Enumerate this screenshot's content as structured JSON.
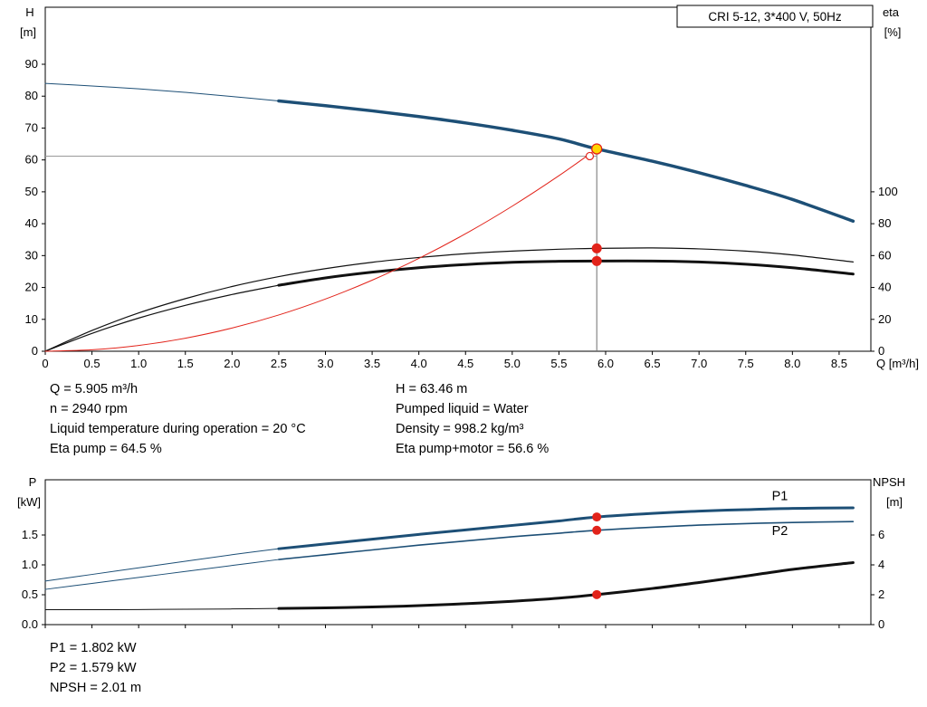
{
  "title_box": "CRI 5-12, 3*400 V, 50Hz",
  "colors": {
    "curve_blue": "#1d4f76",
    "curve_black": "#111111",
    "curve_red": "#e2231a",
    "duty_yellow": "#ffd400",
    "guide_gray": "#808080"
  },
  "info_top": {
    "left": [
      "Q = 5.905 m³/h",
      "n = 2940 rpm",
      "Liquid temperature during operation = 20 °C",
      "Eta pump = 64.5 %"
    ],
    "right": [
      "H = 63.46 m",
      "Pumped liquid = Water",
      "Density = 998.2 kg/m³",
      "Eta pump+motor = 56.6 %"
    ]
  },
  "info_bottom": [
    "P1 = 1.802 kW",
    "P2 = 1.579 kW",
    "NPSH = 2.01 m"
  ],
  "chart_data": [
    {
      "id": "qh",
      "type": "line",
      "title": "CRI 5-12, 3*400 V, 50Hz",
      "x": {
        "label": "Q [m³/h]",
        "min": 0,
        "max": 8.84,
        "ticks": [
          0,
          0.5,
          1,
          1.5,
          2,
          2.5,
          3,
          3.5,
          4,
          4.5,
          5,
          5.5,
          6,
          6.5,
          7,
          7.5,
          8,
          8.5
        ],
        "tick_labels": [
          "0",
          "0.5",
          "1.0",
          "1.5",
          "2.0",
          "2.5",
          "3.0",
          "3.5",
          "4.0",
          "4.5",
          "5.0",
          "5.5",
          "6.0",
          "6.5",
          "7.0",
          "7.5",
          "8.0",
          "8.5"
        ]
      },
      "y_left": {
        "label_lines": [
          "H",
          "[m]"
        ],
        "min": 0,
        "max": 107.9,
        "ticks": [
          0,
          10,
          20,
          30,
          40,
          50,
          60,
          70,
          80,
          90
        ]
      },
      "y_right": {
        "label_lines": [
          "eta",
          "[%]"
        ],
        "min": 0,
        "max": 215.8,
        "ticks": [
          0,
          20,
          40,
          60,
          80,
          100
        ]
      },
      "series": [
        {
          "name": "qh-extension",
          "color": "#1d4f76",
          "width": 1,
          "axis": "left",
          "points": [
            [
              0,
              84
            ],
            [
              0.5,
              83.2
            ],
            [
              1,
              82.3
            ],
            [
              1.5,
              81.2
            ],
            [
              2,
              79.9
            ],
            [
              2.5,
              78.5
            ]
          ]
        },
        {
          "name": "eta-pump-motor-extension",
          "color": "#111111",
          "width": 1.2,
          "axis": "right",
          "points": [
            [
              0,
              0
            ],
            [
              0.5,
              11.2
            ],
            [
              1,
              20.8
            ],
            [
              1.5,
              28.8
            ],
            [
              2,
              35.6
            ],
            [
              2.5,
              41.4
            ]
          ]
        },
        {
          "name": "eta-pump-motor-curve",
          "color": "#111111",
          "width": 3,
          "axis": "right",
          "points": [
            [
              2.5,
              41.4
            ],
            [
              3,
              46
            ],
            [
              3.5,
              49.6
            ],
            [
              4,
              52.4
            ],
            [
              4.5,
              54.4
            ],
            [
              5,
              55.8
            ],
            [
              5.5,
              56.4
            ],
            [
              5.905,
              56.6
            ],
            [
              6.5,
              56.6
            ],
            [
              7,
              56
            ],
            [
              7.5,
              54.6
            ],
            [
              8,
              52.4
            ],
            [
              8.65,
              48.4
            ]
          ]
        },
        {
          "name": "eta-pump-curve",
          "color": "#111111",
          "width": 1.2,
          "axis": "right",
          "points": [
            [
              0,
              0
            ],
            [
              0.5,
              13
            ],
            [
              1,
              24
            ],
            [
              1.5,
              33
            ],
            [
              2,
              40.6
            ],
            [
              2.5,
              46.8
            ],
            [
              3,
              51.8
            ],
            [
              3.5,
              55.8
            ],
            [
              4,
              58.8
            ],
            [
              4.5,
              61.2
            ],
            [
              5,
              62.8
            ],
            [
              5.5,
              64
            ],
            [
              5.905,
              64.5
            ],
            [
              6.5,
              64.8
            ],
            [
              7,
              64.2
            ],
            [
              7.5,
              62.8
            ],
            [
              8,
              60.4
            ],
            [
              8.65,
              56
            ]
          ]
        },
        {
          "name": "system-curve",
          "color": "#e2231a",
          "width": 1,
          "axis": "left",
          "points": [
            [
              0,
              0
            ],
            [
              0.5,
              0.45
            ],
            [
              1,
              1.82
            ],
            [
              1.5,
              4.09
            ],
            [
              2,
              7.28
            ],
            [
              2.5,
              11.37
            ],
            [
              3,
              16.38
            ],
            [
              3.5,
              22.29
            ],
            [
              4,
              29.12
            ],
            [
              4.5,
              36.85
            ],
            [
              5,
              45.5
            ],
            [
              5.5,
              55.05
            ],
            [
              5.905,
              63.46
            ]
          ]
        },
        {
          "name": "qh-curve",
          "color": "#1d4f76",
          "width": 3.5,
          "axis": "left",
          "points": [
            [
              2.5,
              78.5
            ],
            [
              3,
              77
            ],
            [
              3.5,
              75.4
            ],
            [
              4,
              73.6
            ],
            [
              4.5,
              71.6
            ],
            [
              5,
              69.3
            ],
            [
              5.5,
              66.6
            ],
            [
              5.905,
              63.46
            ],
            [
              6.5,
              59.6
            ],
            [
              7,
              56
            ],
            [
              7.5,
              52
            ],
            [
              8,
              47.6
            ],
            [
              8.65,
              40.8
            ]
          ]
        }
      ],
      "guides": [
        {
          "dir": "v",
          "at": 5.905,
          "from": 0,
          "to": 63.46,
          "color": "#707070",
          "width": 1
        },
        {
          "dir": "h",
          "at": 61.2,
          "from": 0,
          "to": 5.905,
          "color": "#9a9a9a",
          "width": 1
        }
      ],
      "markers": [
        {
          "name": "requested-duty-point",
          "x": 5.83,
          "y": 61.2,
          "axis": "left",
          "r": 4,
          "fill": "#ffffff",
          "stroke": "#e2231a",
          "stroke_width": 1.2
        },
        {
          "name": "duty-point",
          "x": 5.905,
          "y": 63.46,
          "axis": "left",
          "r": 5.5,
          "fill": "#ffd400",
          "stroke": "#e2231a",
          "stroke_width": 1.3
        },
        {
          "name": "eta-pump-point",
          "x": 5.905,
          "y": 64.5,
          "axis": "right",
          "r": 5.5,
          "fill": "#e2231a",
          "stroke": "none",
          "stroke_width": 0
        },
        {
          "name": "eta-pump-motor-point",
          "x": 5.905,
          "y": 56.6,
          "axis": "right",
          "r": 5.5,
          "fill": "#e2231a",
          "stroke": "none",
          "stroke_width": 0
        }
      ]
    },
    {
      "id": "pn",
      "type": "line",
      "x": {
        "label": "",
        "min": 0,
        "max": 8.84,
        "ticks": [
          0,
          0.5,
          1,
          1.5,
          2,
          2.5,
          3,
          3.5,
          4,
          4.5,
          5,
          5.5,
          6,
          6.5,
          7,
          7.5,
          8,
          8.5
        ]
      },
      "y_left": {
        "label_lines": [
          "P",
          "[kW]"
        ],
        "min": 0,
        "max": 2.42,
        "ticks": [
          0,
          0.5,
          1,
          1.5
        ],
        "tick_labels": [
          "0.0",
          "0.5",
          "1.0",
          "1.5"
        ]
      },
      "y_right": {
        "label_lines": [
          "NPSH",
          "[m]"
        ],
        "min": 0,
        "max": 9.7,
        "ticks": [
          0,
          2,
          4,
          6
        ]
      },
      "series": [
        {
          "name": "p1-extension",
          "color": "#1d4f76",
          "width": 1,
          "axis": "left",
          "points": [
            [
              0,
              0.73
            ],
            [
              0.5,
              0.84
            ],
            [
              1,
              0.95
            ],
            [
              1.5,
              1.06
            ],
            [
              2,
              1.17
            ],
            [
              2.5,
              1.27
            ]
          ]
        },
        {
          "name": "p2-extension",
          "color": "#1d4f76",
          "width": 1,
          "axis": "left",
          "points": [
            [
              0,
              0.59
            ],
            [
              0.5,
              0.69
            ],
            [
              1,
              0.79
            ],
            [
              1.5,
              0.89
            ],
            [
              2,
              0.99
            ],
            [
              2.5,
              1.09
            ]
          ]
        },
        {
          "name": "npsh-extension",
          "color": "#111111",
          "width": 1,
          "axis": "right",
          "points": [
            [
              0,
              1.0
            ],
            [
              0.5,
              1.0
            ],
            [
              1,
              1.01
            ],
            [
              1.5,
              1.03
            ],
            [
              2,
              1.05
            ],
            [
              2.5,
              1.08
            ]
          ]
        },
        {
          "name": "npsh-curve",
          "color": "#111111",
          "width": 3,
          "axis": "right",
          "points": [
            [
              2.5,
              1.08
            ],
            [
              3,
              1.12
            ],
            [
              3.5,
              1.18
            ],
            [
              4,
              1.27
            ],
            [
              4.5,
              1.4
            ],
            [
              5,
              1.56
            ],
            [
              5.5,
              1.77
            ],
            [
              5.905,
              2.01
            ],
            [
              6.5,
              2.42
            ],
            [
              7,
              2.82
            ],
            [
              7.5,
              3.25
            ],
            [
              8,
              3.7
            ],
            [
              8.65,
              4.15
            ]
          ]
        },
        {
          "name": "p2-curve",
          "color": "#1d4f76",
          "width": 1.6,
          "axis": "left",
          "points": [
            [
              2.5,
              1.09
            ],
            [
              3,
              1.17
            ],
            [
              3.5,
              1.25
            ],
            [
              4,
              1.33
            ],
            [
              4.5,
              1.4
            ],
            [
              5,
              1.47
            ],
            [
              5.5,
              1.53
            ],
            [
              5.905,
              1.579
            ],
            [
              6.5,
              1.63
            ],
            [
              7,
              1.665
            ],
            [
              7.5,
              1.69
            ],
            [
              8,
              1.71
            ],
            [
              8.65,
              1.725
            ]
          ]
        },
        {
          "name": "p1-curve",
          "color": "#1d4f76",
          "width": 3,
          "axis": "left",
          "points": [
            [
              2.5,
              1.27
            ],
            [
              3,
              1.35
            ],
            [
              3.5,
              1.43
            ],
            [
              4,
              1.51
            ],
            [
              4.5,
              1.585
            ],
            [
              5,
              1.66
            ],
            [
              5.5,
              1.735
            ],
            [
              5.905,
              1.802
            ],
            [
              6.5,
              1.862
            ],
            [
              7,
              1.9
            ],
            [
              7.5,
              1.925
            ],
            [
              8,
              1.945
            ],
            [
              8.65,
              1.955
            ]
          ]
        }
      ],
      "labels": [
        {
          "text": "P1",
          "x": 7.78,
          "y": 2.08,
          "axis": "left",
          "color": "#1d4f76"
        },
        {
          "text": "P2",
          "x": 7.78,
          "y": 1.5,
          "axis": "left",
          "color": "#1d4f76"
        }
      ],
      "markers": [
        {
          "name": "p1-point",
          "x": 5.905,
          "y": 1.802,
          "axis": "left",
          "r": 5,
          "fill": "#e2231a",
          "stroke": "none",
          "stroke_width": 0
        },
        {
          "name": "p2-point",
          "x": 5.905,
          "y": 1.579,
          "axis": "left",
          "r": 5,
          "fill": "#e2231a",
          "stroke": "none",
          "stroke_width": 0
        },
        {
          "name": "npsh-point",
          "x": 5.905,
          "y": 2.01,
          "axis": "right",
          "r": 5,
          "fill": "#e2231a",
          "stroke": "none",
          "stroke_width": 0
        }
      ]
    }
  ]
}
